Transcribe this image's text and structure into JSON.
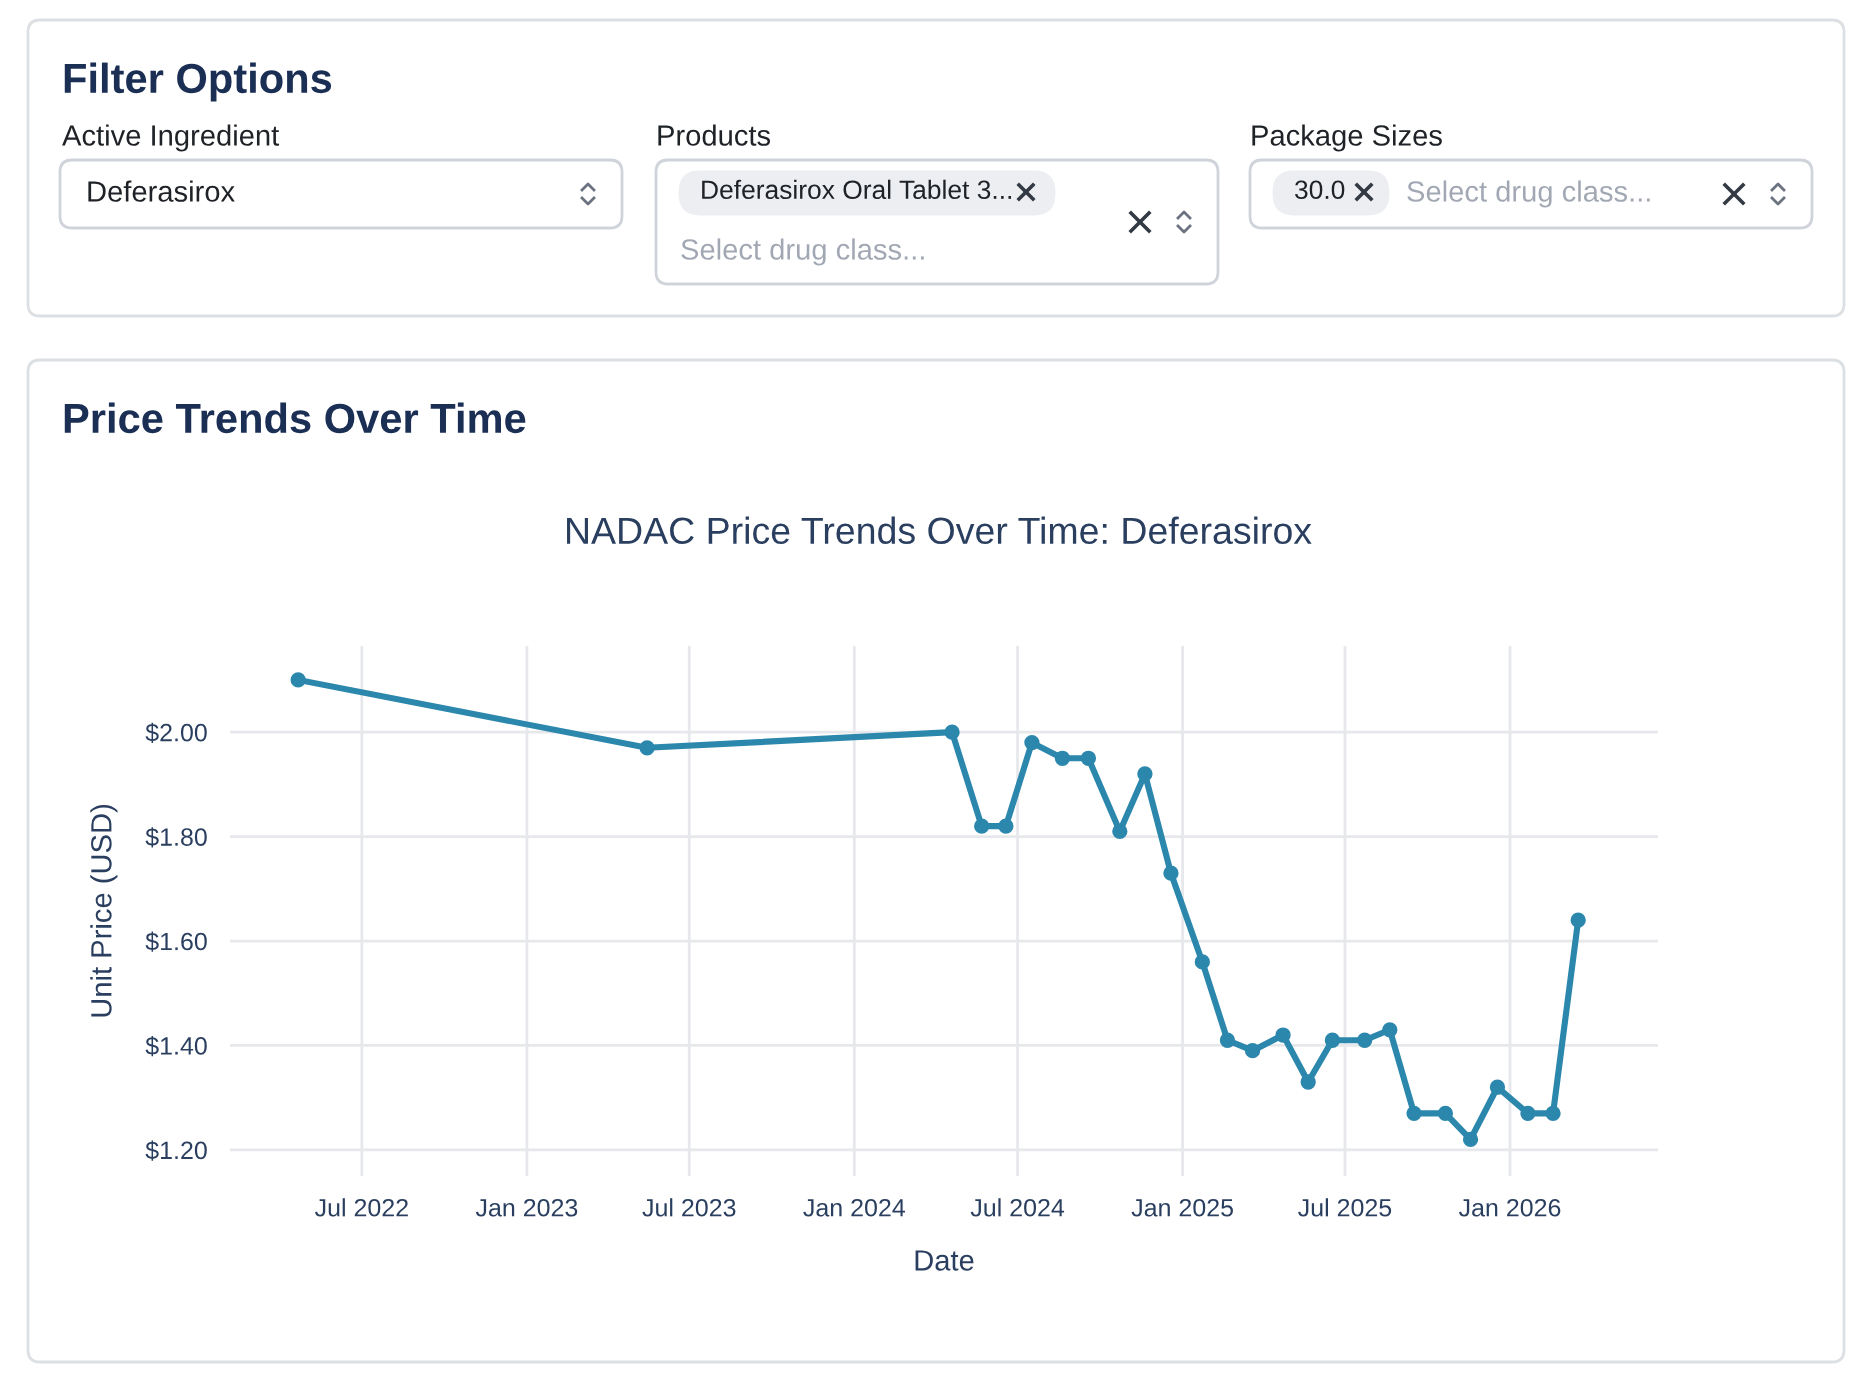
{
  "chart_data": [
    {
      "type": "other",
      "title": "Filter Options",
      "annotations": [
        "Active Ingredient",
        "Deferasirox",
        "Products",
        "Deferasirox Oral Tablet 3...",
        "Select drug class...",
        "Package Sizes",
        "30.0",
        "Select drug class..."
      ]
    },
    {
      "type": "line",
      "title": "NADAC Price Trends Over Time: Deferasirox",
      "annotations": [
        "Price Trends Over Time"
      ],
      "xlabel": "Date",
      "ylabel": "Unit Price (USD)",
      "x": [
        "2022-04-21",
        "2023-05-15",
        "2024-04-19",
        "2024-05-22",
        "2024-06-18",
        "2024-07-17",
        "2024-08-20",
        "2024-09-18",
        "2024-10-23",
        "2024-11-20",
        "2024-12-19",
        "2025-01-23",
        "2025-02-20",
        "2025-03-20",
        "2025-04-23",
        "2025-05-21",
        "2025-06-17",
        "2025-07-23",
        "2025-08-20",
        "2025-09-16",
        "2025-10-21",
        "2025-11-18",
        "2025-12-18",
        "2026-01-21",
        "2026-02-18",
        "2026-03-18"
      ],
      "series": [
        {
          "color": "#2c87ad",
          "values": [
            2.1,
            1.97,
            2.0,
            1.82,
            1.82,
            1.98,
            1.95,
            1.95,
            1.81,
            1.92,
            1.73,
            1.56,
            1.41,
            1.39,
            1.42,
            1.33,
            1.41,
            1.41,
            1.43,
            1.27,
            1.27,
            1.22,
            1.32,
            1.27,
            1.27,
            1.64
          ]
        }
      ],
      "xlim": [
        "2022-02-04",
        "2026-06-15"
      ],
      "ylim": [
        1.15,
        2.165
      ],
      "xticks": [
        {
          "value": "2022-07-01",
          "label": "Jul 2022"
        },
        {
          "value": "2023-01-01",
          "label": "Jan 2023"
        },
        {
          "value": "2023-07-01",
          "label": "Jul 2023"
        },
        {
          "value": "2024-01-01",
          "label": "Jan 2024"
        },
        {
          "value": "2024-07-01",
          "label": "Jul 2024"
        },
        {
          "value": "2025-01-01",
          "label": "Jan 2025"
        },
        {
          "value": "2025-07-01",
          "label": "Jul 2025"
        },
        {
          "value": "2026-01-01",
          "label": "Jan 2026"
        }
      ],
      "yticks": [
        {
          "value": 1.2,
          "label": "$1.20"
        },
        {
          "value": 1.4,
          "label": "$1.40"
        },
        {
          "value": 1.6,
          "label": "$1.60"
        },
        {
          "value": 1.8,
          "label": "$1.80"
        },
        {
          "value": 2.0,
          "label": "$2.00"
        }
      ],
      "grid": true,
      "marker": "circle",
      "line_style": "solid"
    }
  ]
}
